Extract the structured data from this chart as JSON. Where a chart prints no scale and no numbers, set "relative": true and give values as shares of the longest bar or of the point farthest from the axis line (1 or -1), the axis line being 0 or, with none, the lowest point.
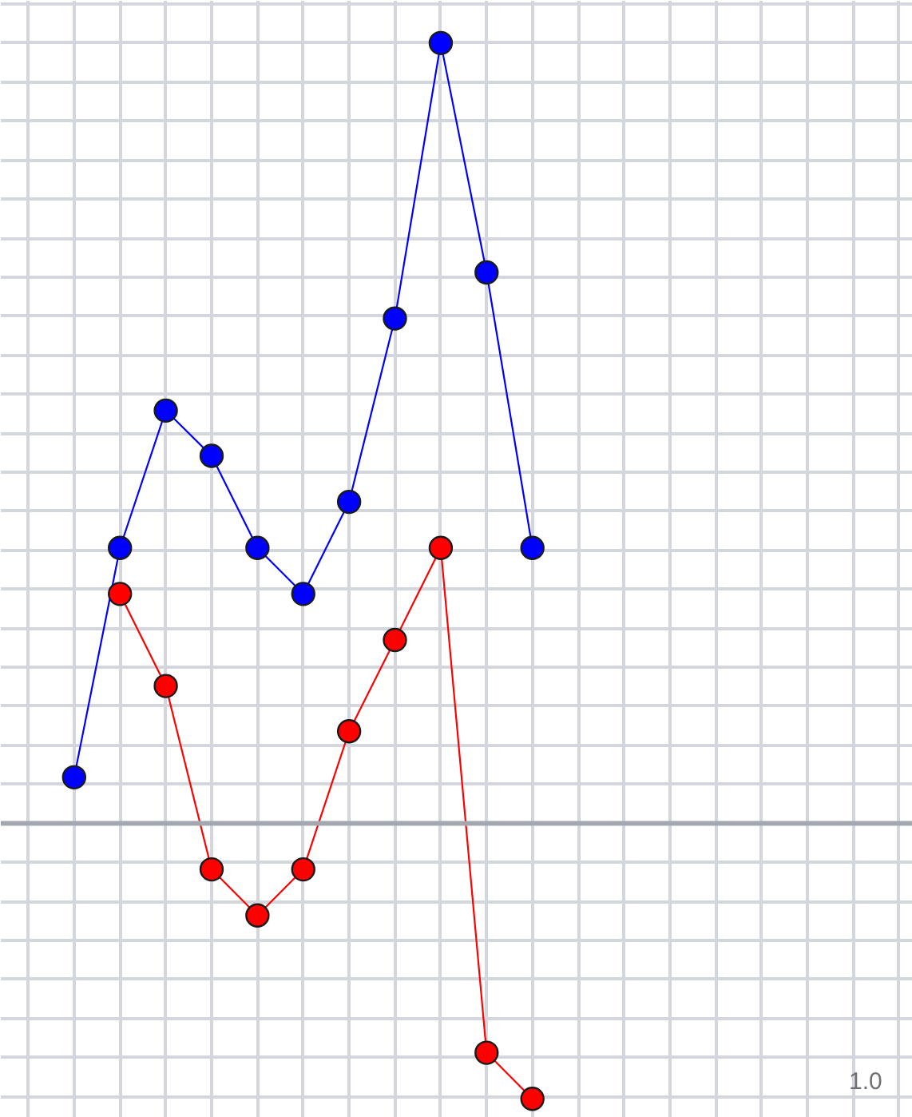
{
  "chart_data": {
    "type": "line",
    "relative": true,
    "grid": true,
    "marker": "circle",
    "line_style": "solid",
    "categories": [
      null,
      null,
      null,
      null,
      null,
      null,
      null,
      null,
      null,
      null,
      null
    ],
    "series": [
      {
        "color": "#0000ff",
        "values": [
          0.059,
          0.353,
          0.529,
          0.471,
          0.353,
          0.294,
          0.412,
          0.647,
          1,
          0.706,
          0.353
        ]
      },
      {
        "color": "#ff0000",
        "values": [
          null,
          0.294,
          0.176,
          -0.059,
          -0.118,
          -0.059,
          0.118,
          0.235,
          0.353,
          -0.294,
          -0.353
        ]
      }
    ],
    "annotations": [
      "1.0"
    ]
  }
}
